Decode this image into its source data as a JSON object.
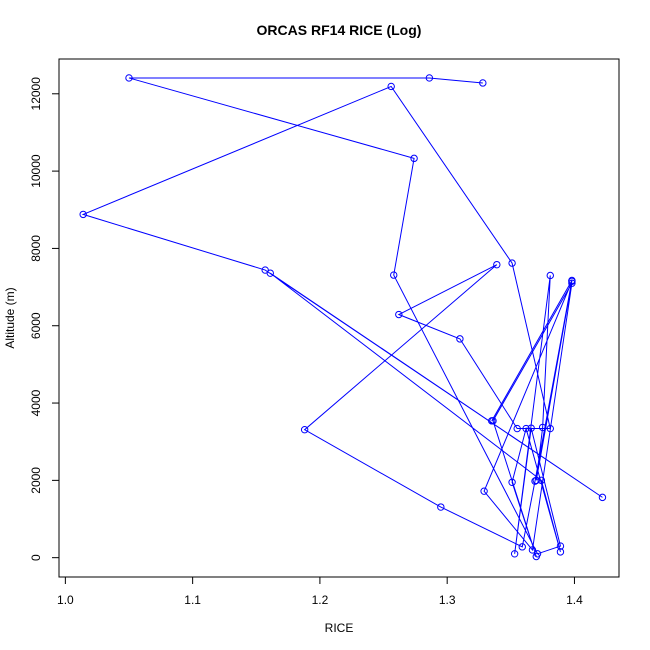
{
  "chart_data": {
    "type": "line",
    "title": "ORCAS RF14 RICE (Log)",
    "xlabel": "RICE",
    "ylabel": "Altitude (m)",
    "xlim": [
      0.995,
      1.435
    ],
    "ylim": [
      -500,
      12900
    ],
    "xticks": [
      1.0,
      1.1,
      1.2,
      1.3,
      1.4
    ],
    "xtick_labels": [
      "1.0",
      "1.1",
      "1.2",
      "1.3",
      "1.4"
    ],
    "yticks": [
      0,
      2000,
      4000,
      6000,
      8000,
      10000,
      12000
    ],
    "ytick_labels": [
      "0",
      "2000",
      "4000",
      "6000",
      "8000",
      "10000",
      "12000"
    ],
    "grid": false,
    "series": [
      {
        "color": "#0000ff",
        "marker": "open-circle",
        "points": [
          {
            "x": 1.328,
            "y": 12280
          },
          {
            "x": 1.286,
            "y": 12410
          },
          {
            "x": 1.05,
            "y": 12410
          },
          {
            "x": 1.274,
            "y": 10330
          },
          {
            "x": 1.258,
            "y": 7310
          },
          {
            "x": 1.371,
            "y": 100
          },
          {
            "x": 1.389,
            "y": 300
          },
          {
            "x": 1.366,
            "y": 3350
          },
          {
            "x": 1.353,
            "y": 100
          },
          {
            "x": 1.381,
            "y": 7300
          },
          {
            "x": 1.375,
            "y": 3370
          },
          {
            "x": 1.37,
            "y": 2000
          },
          {
            "x": 1.398,
            "y": 7150
          },
          {
            "x": 1.329,
            "y": 1720
          },
          {
            "x": 1.367,
            "y": 200
          },
          {
            "x": 1.398,
            "y": 7100
          },
          {
            "x": 1.336,
            "y": 3540
          },
          {
            "x": 1.37,
            "y": 30
          },
          {
            "x": 1.351,
            "y": 1950
          },
          {
            "x": 1.362,
            "y": 3340
          },
          {
            "x": 1.389,
            "y": 150
          },
          {
            "x": 1.374,
            "y": 2000
          },
          {
            "x": 1.161,
            "y": 7360
          },
          {
            "x": 1.422,
            "y": 1560
          },
          {
            "x": 1.157,
            "y": 7440
          },
          {
            "x": 1.014,
            "y": 8880
          },
          {
            "x": 1.256,
            "y": 12190
          },
          {
            "x": 1.351,
            "y": 7620
          },
          {
            "x": 1.381,
            "y": 3340
          },
          {
            "x": 1.355,
            "y": 3340
          },
          {
            "x": 1.31,
            "y": 5660
          },
          {
            "x": 1.262,
            "y": 6290
          },
          {
            "x": 1.339,
            "y": 7580
          },
          {
            "x": 1.188,
            "y": 3310
          },
          {
            "x": 1.295,
            "y": 1310
          },
          {
            "x": 1.359,
            "y": 280
          },
          {
            "x": 1.369,
            "y": 1980
          },
          {
            "x": 1.398,
            "y": 7170
          },
          {
            "x": 1.335,
            "y": 3540
          }
        ]
      }
    ]
  }
}
